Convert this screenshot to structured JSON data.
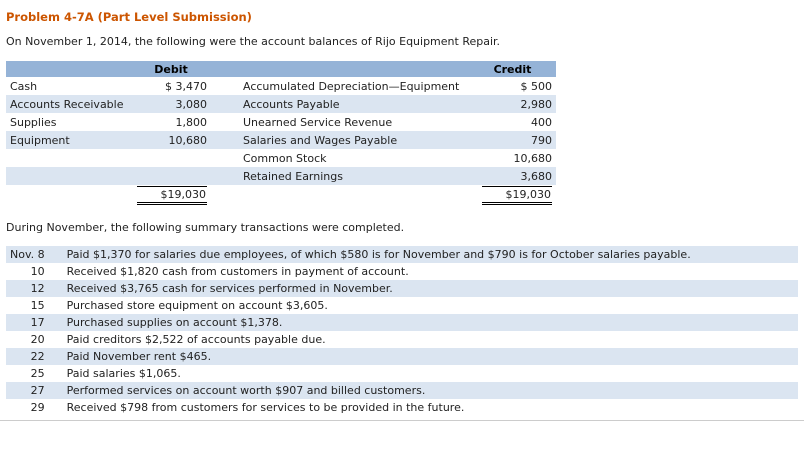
{
  "page": {
    "title": "Problem 4-7A (Part Level Submission)",
    "intro": "On November 1, 2014, the following were the account balances of Rijo Equipment Repair.",
    "middle_text": "During November, the following summary transactions were completed."
  },
  "colors": {
    "title_color": "#cc5500",
    "header_bg": "#95b3d7",
    "row_alt_bg": "#dbe5f1"
  },
  "balance_table": {
    "debit_header": "Debit",
    "credit_header": "Credit",
    "rows": [
      {
        "debit_account": "Cash",
        "debit_amount": "$ 3,470",
        "credit_account": "Accumulated Depreciation—Equipment",
        "credit_amount": "$ 500"
      },
      {
        "debit_account": "Accounts Receivable",
        "debit_amount": "3,080",
        "credit_account": "Accounts Payable",
        "credit_amount": "2,980"
      },
      {
        "debit_account": "Supplies",
        "debit_amount": "1,800",
        "credit_account": "Unearned Service Revenue",
        "credit_amount": "400"
      },
      {
        "debit_account": "Equipment",
        "debit_amount": "10,680",
        "credit_account": "Salaries and Wages Payable",
        "credit_amount": "790"
      },
      {
        "debit_account": "",
        "debit_amount": "",
        "credit_account": "Common Stock",
        "credit_amount": "10,680"
      },
      {
        "debit_account": "",
        "debit_amount": "",
        "credit_account": "Retained Earnings",
        "credit_amount": "3,680"
      }
    ],
    "totals": {
      "debit_total": "$19,030",
      "credit_total": "$19,030"
    }
  },
  "transactions": [
    {
      "date": "Nov. 8",
      "description": "Paid $1,370 for salaries due employees, of which $580 is for November and $790 is for October salaries payable."
    },
    {
      "date": "10",
      "description": "Received $1,820 cash from customers in payment of account."
    },
    {
      "date": "12",
      "description": "Received $3,765 cash for services performed in November."
    },
    {
      "date": "15",
      "description": "Purchased store equipment on account $3,605."
    },
    {
      "date": "17",
      "description": "Purchased supplies on account $1,378."
    },
    {
      "date": "20",
      "description": "Paid creditors $2,522 of accounts payable due."
    },
    {
      "date": "22",
      "description": "Paid November rent $465."
    },
    {
      "date": "25",
      "description": "Paid salaries $1,065."
    },
    {
      "date": "27",
      "description": "Performed services on account worth $907 and billed customers."
    },
    {
      "date": "29",
      "description": "Received $798 from customers for services to be provided in the future."
    }
  ]
}
